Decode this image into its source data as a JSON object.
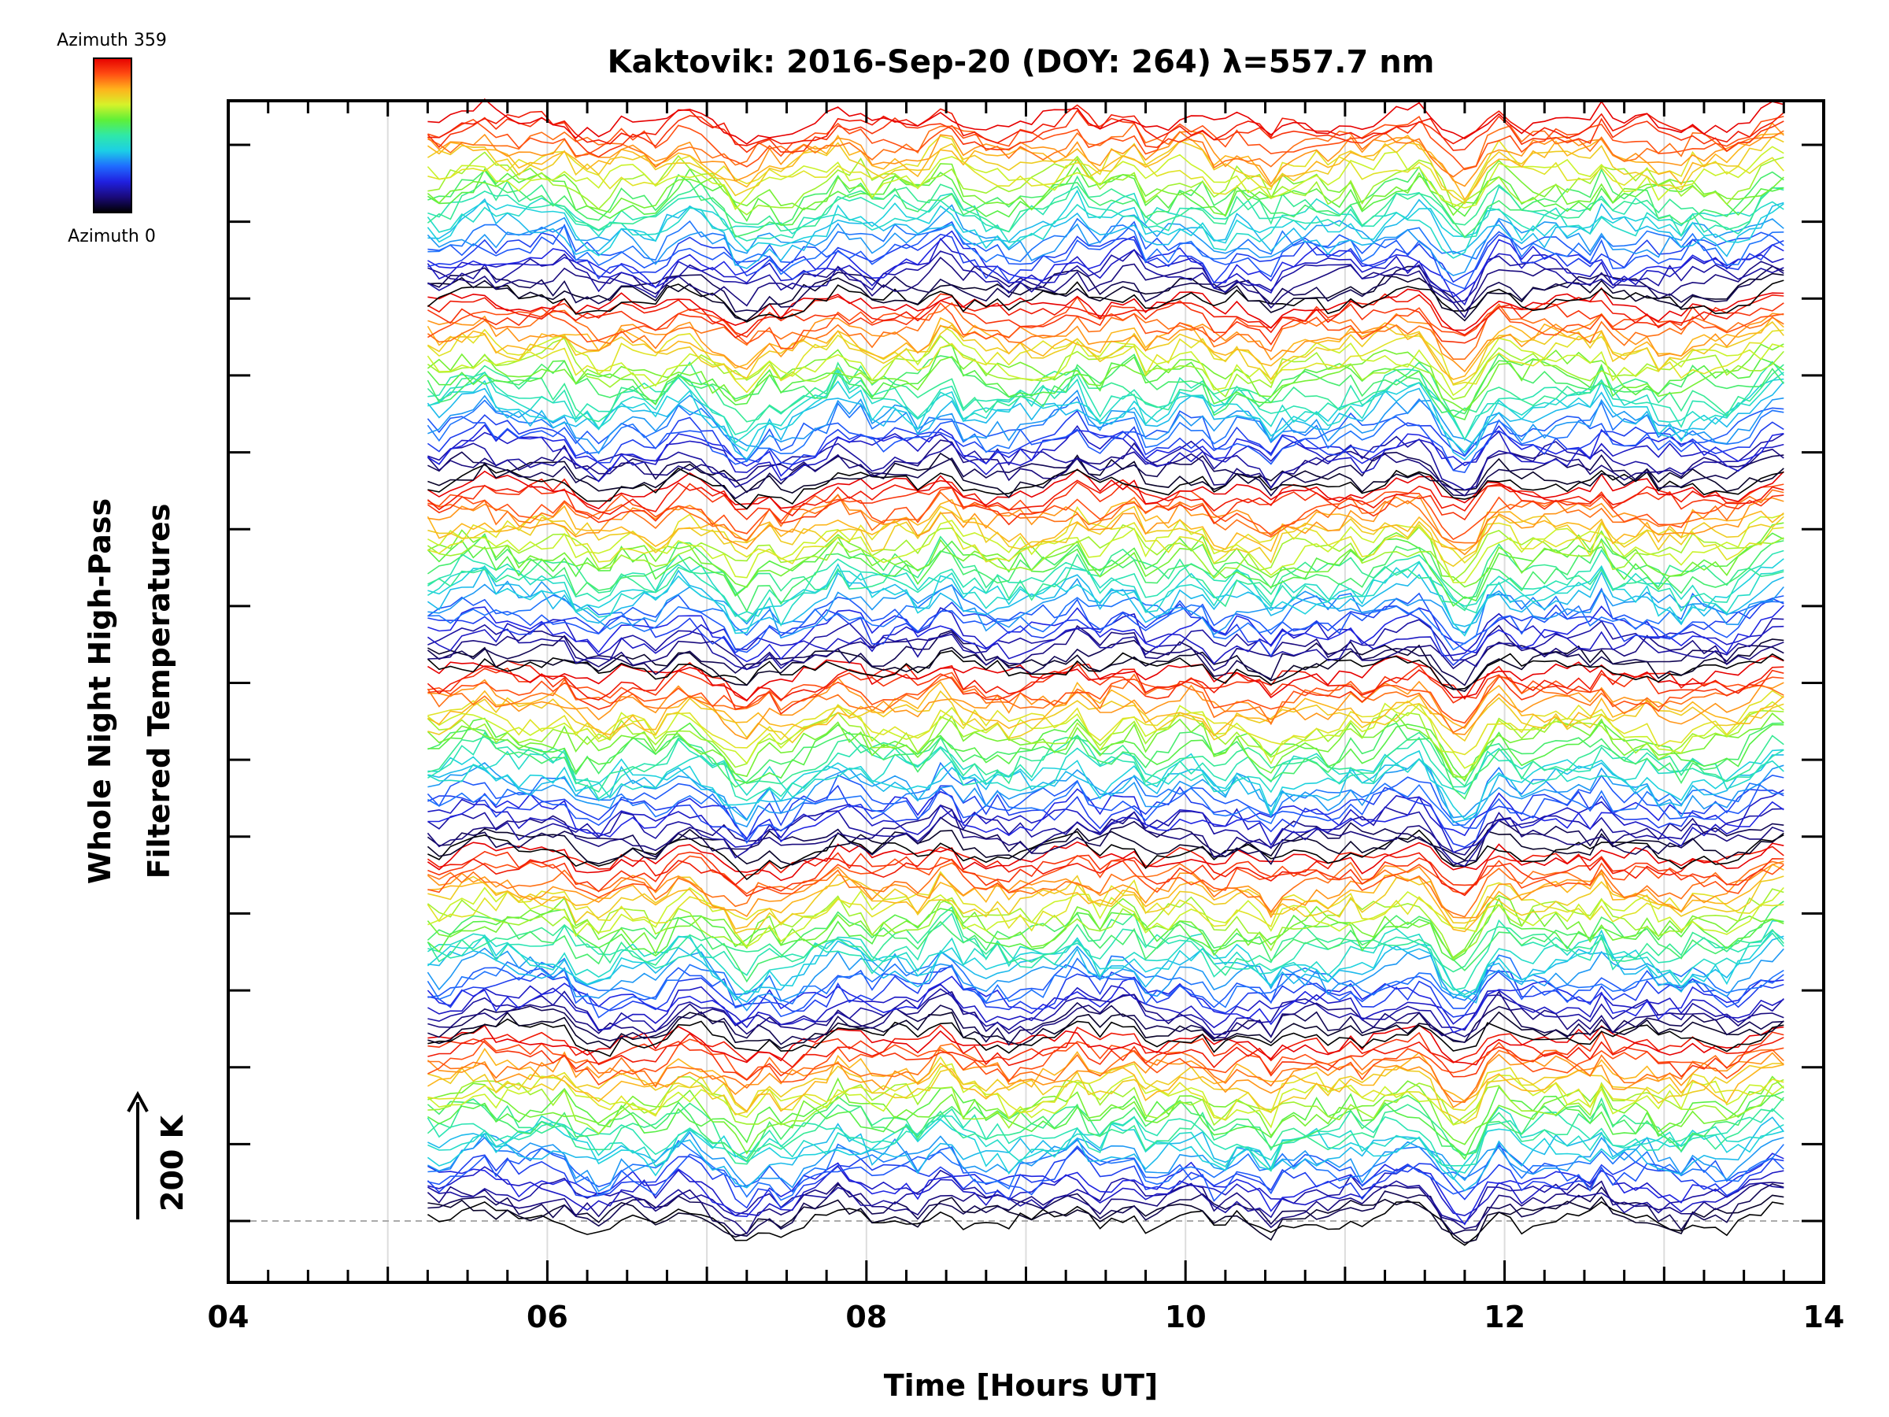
{
  "chart_data": {
    "type": "line",
    "title": "Kaktovik: 2016-Sep-20 (DOY: 264) λ=557.7 nm",
    "xlabel": "Time [Hours UT]",
    "ylabel_line1": "Whole Night High-Pass",
    "ylabel_line2": "Filtered Temperatures",
    "scale_label": "200 K",
    "xlim": [
      4,
      14
    ],
    "x_ticks": [
      "04",
      "06",
      "08",
      "10",
      "12",
      "14"
    ],
    "x_tick_values": [
      4,
      6,
      8,
      10,
      12,
      14
    ],
    "y_major_tick_count": 15,
    "gridlines_x_hours": [
      5,
      6,
      7,
      8,
      9,
      10,
      11,
      12,
      13
    ],
    "data_time_range": [
      5.25,
      13.75
    ],
    "series_count": 180,
    "azimuth_range": [
      0,
      359
    ],
    "common_features": [
      {
        "time": 5.62,
        "amplitude": 0.45
      },
      {
        "time": 6.05,
        "amplitude": 0.3
      },
      {
        "time": 6.3,
        "amplitude": -0.35
      },
      {
        "time": 6.6,
        "amplitude": -0.3
      },
      {
        "time": 6.9,
        "amplitude": 0.45
      },
      {
        "time": 7.2,
        "amplitude": -0.9
      },
      {
        "time": 7.45,
        "amplitude": -0.4
      },
      {
        "time": 7.85,
        "amplitude": 0.25
      },
      {
        "time": 8.5,
        "amplitude": 0.55
      },
      {
        "time": 8.9,
        "amplitude": -0.3
      },
      {
        "time": 9.3,
        "amplitude": 0.35
      },
      {
        "time": 9.6,
        "amplitude": 0.55
      },
      {
        "time": 10.02,
        "amplitude": 0.4
      },
      {
        "time": 10.2,
        "amplitude": -0.45
      },
      {
        "time": 10.5,
        "amplitude": -0.4
      },
      {
        "time": 11.4,
        "amplitude": 0.6
      },
      {
        "time": 11.72,
        "amplitude": -1.1
      },
      {
        "time": 12.0,
        "amplitude": 0.3
      },
      {
        "time": 12.6,
        "amplitude": 0.25
      },
      {
        "time": 13.05,
        "amplitude": -0.3
      },
      {
        "time": 13.7,
        "amplitude": 0.45
      }
    ]
  },
  "colorbar": {
    "top_label": "Azimuth 359",
    "bottom_label": "Azimuth 0",
    "colors": [
      "#000000",
      "#1a0a7a",
      "#2020e0",
      "#1f6bff",
      "#1ccfe6",
      "#2fe8a8",
      "#5ef038",
      "#d6f22a",
      "#ffb21c",
      "#ff4b12",
      "#e60000"
    ]
  }
}
